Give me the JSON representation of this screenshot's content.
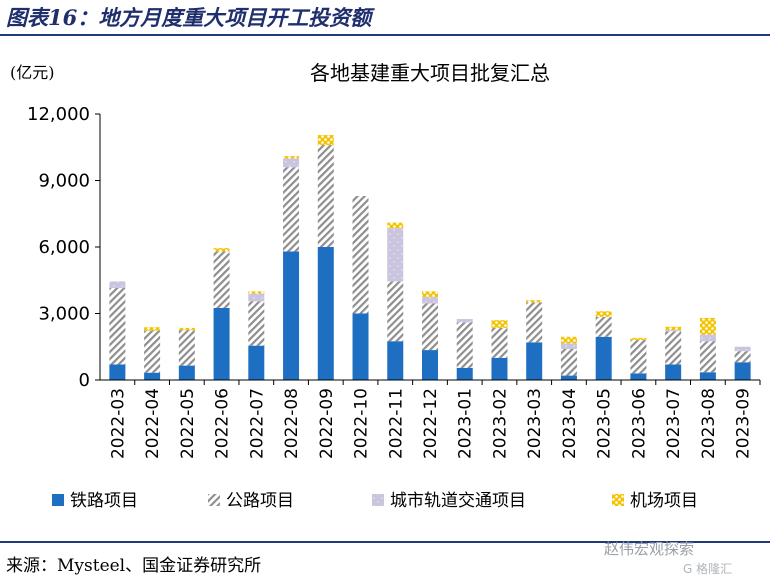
{
  "figure_title": "图表16：地方月度重大项目开工投资额",
  "source": "来源：Mysteel、国金证券研究所",
  "watermark": "赵伟宏观探索",
  "watermark_sub": "G 格隆汇",
  "colors": {
    "title": "#1f2f6e",
    "rule": "#1f3a78",
    "railway": "#1e6fc2",
    "highway": "#a9a9a9",
    "metro": "#c8c2dc",
    "airport": "#f2c200"
  },
  "chart_data": {
    "type": "bar",
    "stacked": true,
    "title": "各地基建重大项目批复汇总",
    "unit": "(亿元)",
    "ylim": [
      0,
      12000
    ],
    "yticks": [
      0,
      3000,
      6000,
      9000,
      12000
    ],
    "ytick_labels": [
      "0",
      "3,000",
      "6,000",
      "9,000",
      "12,000"
    ],
    "categories": [
      "2022-03",
      "2022-04",
      "2022-05",
      "2022-06",
      "2022-07",
      "2022-08",
      "2022-09",
      "2022-10",
      "2022-11",
      "2022-12",
      "2023-01",
      "2023-02",
      "2023-03",
      "2023-04",
      "2023-05",
      "2023-06",
      "2023-07",
      "2023-08",
      "2023-09"
    ],
    "legend_position": "bottom",
    "series": [
      {
        "name": "铁路项目",
        "pattern": "solid",
        "values": [
          700,
          330,
          650,
          3250,
          1550,
          5800,
          6000,
          3000,
          1750,
          1350,
          550,
          1000,
          1700,
          200,
          1950,
          300,
          700,
          350,
          800
        ]
      },
      {
        "name": "公路项目",
        "pattern": "hatch",
        "values": [
          3450,
          1900,
          1600,
          2550,
          2000,
          3800,
          4600,
          5300,
          2700,
          2100,
          2050,
          1350,
          1800,
          1200,
          900,
          1500,
          1500,
          1400,
          500
        ]
      },
      {
        "name": "城市轨道交通项目",
        "pattern": "lavender",
        "values": [
          300,
          0,
          0,
          0,
          350,
          400,
          0,
          0,
          2400,
          300,
          150,
          0,
          0,
          250,
          0,
          0,
          50,
          300,
          200
        ]
      },
      {
        "name": "机场项目",
        "pattern": "dots",
        "values": [
          0,
          150,
          100,
          150,
          100,
          100,
          450,
          0,
          250,
          250,
          0,
          350,
          100,
          300,
          250,
          100,
          150,
          750,
          0
        ]
      }
    ]
  }
}
